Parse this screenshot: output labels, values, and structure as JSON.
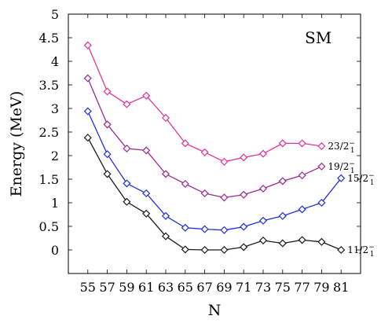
{
  "chart_data": {
    "type": "line",
    "xlabel": "N",
    "ylabel": "Energy (MeV)",
    "annotation": "SM",
    "xlim": [
      53,
      83
    ],
    "ylim": [
      -0.5,
      5
    ],
    "xticks": [
      55,
      57,
      59,
      61,
      63,
      65,
      67,
      69,
      71,
      73,
      75,
      77,
      79,
      81
    ],
    "yticks": [
      0,
      0.5,
      1,
      1.5,
      2,
      2.5,
      3,
      3.5,
      4,
      4.5,
      5
    ],
    "ytick_labels": [
      "0",
      "0.5",
      "1",
      "1.5",
      "2",
      "2.5",
      "3",
      "3.5",
      "4",
      "4.5",
      "5"
    ],
    "grid": false,
    "legend": "inline labels at series ends",
    "series": [
      {
        "name_main": "23/2",
        "name_sub": "1",
        "name_sup": "−",
        "color": "#e0349a",
        "x": [
          55,
          57,
          59,
          61,
          63,
          65,
          67,
          69,
          71,
          73,
          75,
          77,
          79
        ],
        "y": [
          4.34,
          3.36,
          3.09,
          3.27,
          2.8,
          2.26,
          2.07,
          1.87,
          1.96,
          2.04,
          2.26,
          2.26,
          2.2
        ]
      },
      {
        "name_main": "19/2",
        "name_sub": "1",
        "name_sup": "−",
        "color": "#9a2a8e",
        "x": [
          55,
          57,
          59,
          61,
          63,
          65,
          67,
          69,
          71,
          73,
          75,
          77,
          79
        ],
        "y": [
          3.64,
          2.66,
          2.15,
          2.11,
          1.61,
          1.4,
          1.2,
          1.11,
          1.17,
          1.3,
          1.46,
          1.58,
          1.77
        ]
      },
      {
        "name_main": "15/2",
        "name_sub": "1",
        "name_sup": "−",
        "color": "#1f2fe0",
        "x": [
          55,
          57,
          59,
          61,
          63,
          65,
          67,
          69,
          71,
          73,
          75,
          77,
          79,
          81
        ],
        "y": [
          2.94,
          2.03,
          1.41,
          1.2,
          0.72,
          0.47,
          0.44,
          0.42,
          0.49,
          0.62,
          0.72,
          0.86,
          1.0,
          1.52
        ]
      },
      {
        "name_main": "11/2",
        "name_sub": "1",
        "name_sup": "−",
        "color": "#1a1a1a",
        "x": [
          55,
          57,
          59,
          61,
          63,
          65,
          67,
          69,
          71,
          73,
          75,
          77,
          79,
          81
        ],
        "y": [
          2.38,
          1.61,
          1.02,
          0.77,
          0.29,
          0.01,
          0.0,
          0.0,
          0.06,
          0.2,
          0.14,
          0.21,
          0.17,
          0.0
        ]
      }
    ]
  }
}
